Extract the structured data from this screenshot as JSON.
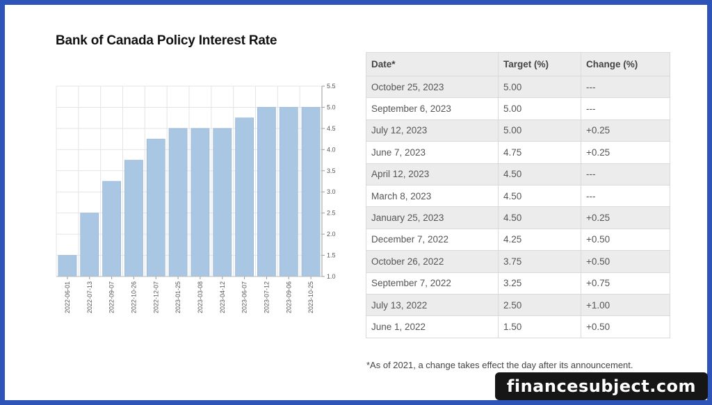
{
  "page": {
    "title": "Bank of Canada  Policy Interest Rate",
    "footnote": "*As of 2021, a change takes effect the day after its announcement.",
    "watermark": "financesubject.com",
    "colors": {
      "frame": "#2f54b8",
      "bar": "#a9c6e3",
      "bar_stroke": "#8eb1d8",
      "grid": "#e4e4e4"
    }
  },
  "chart_data": {
    "type": "bar",
    "title": "Bank of Canada  Policy Interest Rate",
    "categories": [
      "2022-06-01",
      "2022-07-13",
      "2022-09-07",
      "2022-10-26",
      "2022-12-07",
      "2023-01-25",
      "2023-03-08",
      "2023-04-12",
      "2023-06-07",
      "2023-07-12",
      "2023-09-06",
      "2023-10-25"
    ],
    "values": [
      1.5,
      2.5,
      3.25,
      3.75,
      4.25,
      4.5,
      4.5,
      4.5,
      4.75,
      5.0,
      5.0,
      5.0
    ],
    "ylim": [
      1.0,
      5.5
    ],
    "yticks": [
      "1.0",
      "1.5",
      "2.0",
      "2.5",
      "3.0",
      "3.5",
      "4.0",
      "4.5",
      "5.0",
      "5.5"
    ],
    "y_axis_side": "right",
    "grid": true
  },
  "table": {
    "headers": [
      "Date*",
      "Target (%)",
      "Change (%)"
    ],
    "rows": [
      [
        "October 25, 2023",
        "5.00",
        "---"
      ],
      [
        "September 6, 2023",
        "5.00",
        "---"
      ],
      [
        "July 12, 2023",
        "5.00",
        "+0.25"
      ],
      [
        "June 7, 2023",
        "4.75",
        "+0.25"
      ],
      [
        "April 12, 2023",
        "4.50",
        "---"
      ],
      [
        "March 8, 2023",
        "4.50",
        "---"
      ],
      [
        "January 25, 2023",
        "4.50",
        "+0.25"
      ],
      [
        "December 7, 2022",
        "4.25",
        "+0.50"
      ],
      [
        "October 26, 2022",
        "3.75",
        "+0.50"
      ],
      [
        "September 7, 2022",
        "3.25",
        "+0.75"
      ],
      [
        "July 13, 2022",
        "2.50",
        "+1.00"
      ],
      [
        "June 1, 2022",
        "1.50",
        "+0.50"
      ]
    ]
  }
}
